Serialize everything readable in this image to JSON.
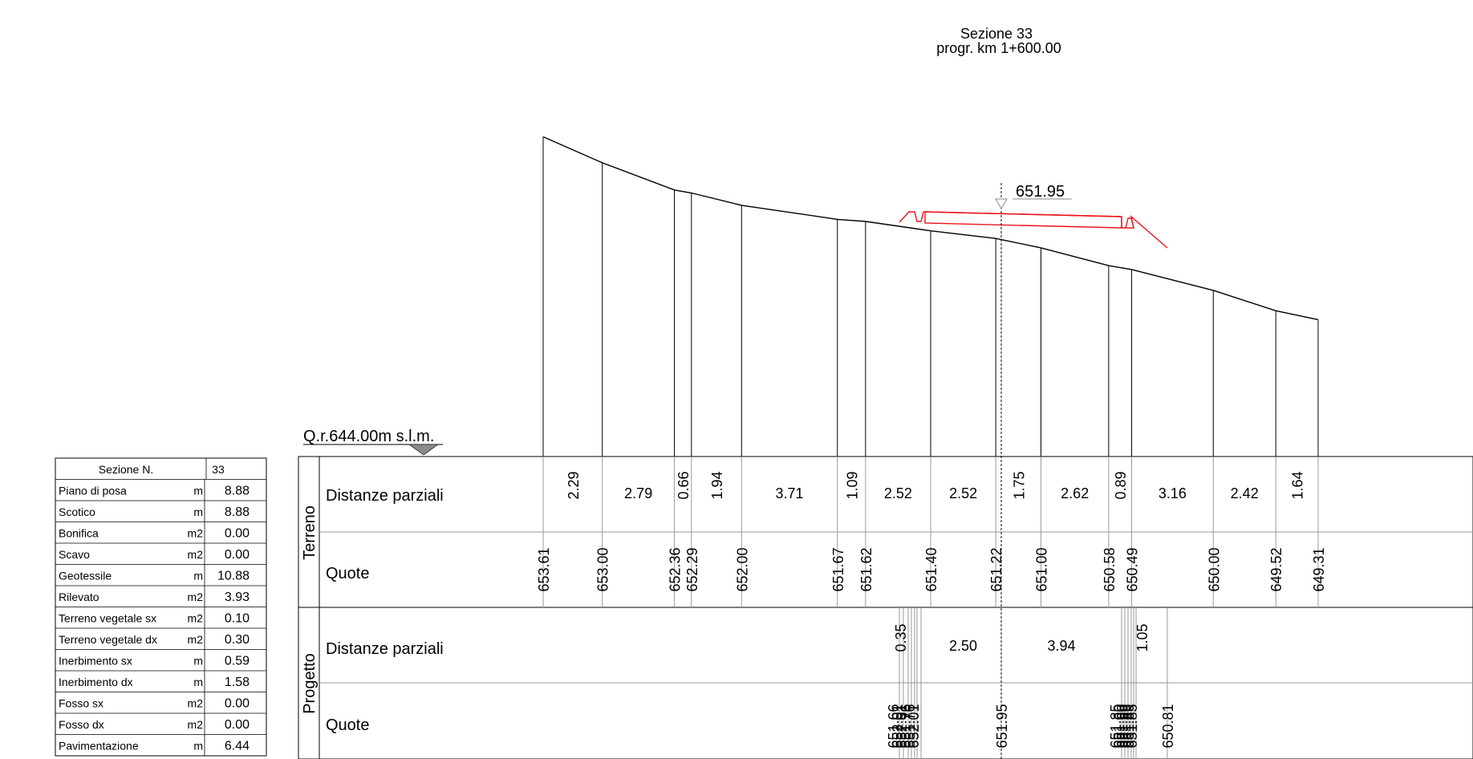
{
  "title": {
    "line1": "Sezione 33",
    "line2": "progr. km  1+600.00"
  },
  "reference_level": "Q.r.644.00m s.l.m.",
  "axis_elevation": "651.95",
  "summary_table": {
    "header": {
      "label": "Sezione N.",
      "value": "33"
    },
    "rows": [
      {
        "label": "Piano di posa",
        "unit": "m",
        "value": "8.88"
      },
      {
        "label": "Scotico",
        "unit": "m",
        "value": "8.88"
      },
      {
        "label": "Bonifica",
        "unit": "m2",
        "value": "0.00"
      },
      {
        "label": "Scavo",
        "unit": "m2",
        "value": "0.00"
      },
      {
        "label": "Geotessile",
        "unit": "m",
        "value": "10.88"
      },
      {
        "label": "Rilevato",
        "unit": "m2",
        "value": "3.93"
      },
      {
        "label": "Terreno vegetale sx",
        "unit": "m2",
        "value": "0.10"
      },
      {
        "label": "Terreno vegetale dx",
        "unit": "m2",
        "value": "0.30"
      },
      {
        "label": "Inerbimento sx",
        "unit": "m",
        "value": "0.59"
      },
      {
        "label": "Inerbimento dx",
        "unit": "m",
        "value": "1.58"
      },
      {
        "label": "Fosso sx",
        "unit": "m2",
        "value": "0.00"
      },
      {
        "label": "Fosso dx",
        "unit": "m2",
        "value": "0.00"
      },
      {
        "label": "Pavimentazione",
        "unit": "m",
        "value": "6.44"
      }
    ]
  },
  "band_groups": {
    "terreno": "Terreno",
    "progetto": "Progetto"
  },
  "band_rows": {
    "terreno_distanze": "Distanze parziali",
    "terreno_quote": "Quote",
    "progetto_distanze": "Distanze parziali",
    "progetto_quote": "Quote"
  },
  "terrain": {
    "quote": [
      "653.61",
      "653.00",
      "652.36",
      "652.29",
      "652.00",
      "651.67",
      "651.62",
      "651.40",
      "651.22",
      "651.00",
      "650.58",
      "650.49",
      "650.00",
      "649.52",
      "649.31"
    ],
    "distanze": [
      "2.29",
      "2.79",
      "0.66",
      "1.94",
      "3.71",
      "1.09",
      "2.52",
      "2.52",
      "1.75",
      "2.62",
      "0.89",
      "3.16",
      "2.42",
      "1.64"
    ]
  },
  "project": {
    "distanze": [
      "0.35",
      "2.50",
      "3.94",
      "1.05"
    ],
    "quote_left_cluster": [
      "651.66",
      "652.01",
      "652.01",
      "651.76",
      "651.76",
      "652.01"
    ],
    "quote_axis": "651.95",
    "quote_right_cluster": [
      "651.85",
      "651.60",
      "651.60",
      "651.89",
      "651.89",
      "651.85"
    ],
    "quote_right_end": "650.81"
  },
  "colors": {
    "line": "#000000",
    "project": "#e8141b",
    "grid": "#9a9a9a"
  }
}
